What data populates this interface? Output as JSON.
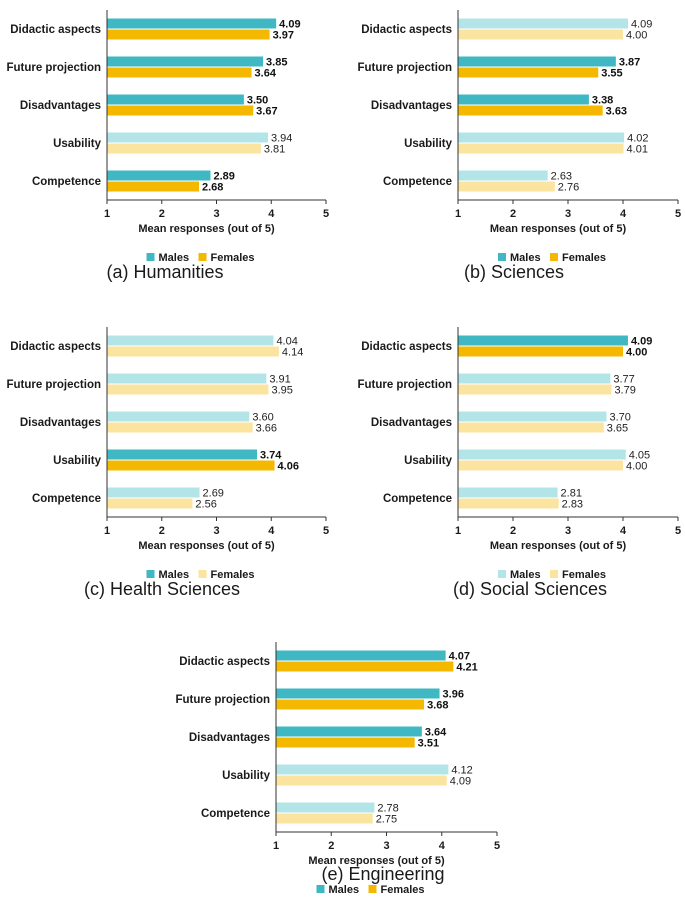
{
  "colors": {
    "males_strong": "#3fb8c4",
    "females_strong": "#f5b800",
    "males_light": "#b3e4e8",
    "females_light": "#fbe3a0",
    "axis": "#333333"
  },
  "chart_data": [
    {
      "type": "bar",
      "orientation": "horizontal",
      "caption": "(a) Humanities",
      "categories": [
        "Didactic aspects",
        "Future projection",
        "Disadvantages",
        "Usability",
        "Competence"
      ],
      "series": [
        {
          "name": "Males",
          "values": [
            4.09,
            3.85,
            3.5,
            3.94,
            2.89
          ],
          "labels": [
            "4.09",
            "3.85",
            "3.50",
            "3.94",
            "2.89"
          ]
        },
        {
          "name": "Females",
          "values": [
            3.97,
            3.64,
            3.67,
            3.81,
            2.68
          ],
          "labels": [
            "3.97",
            "3.64",
            "3.67",
            "3.81",
            "2.68"
          ]
        }
      ],
      "highlighted": [
        true,
        true,
        true,
        false,
        true
      ],
      "xlabel": "Mean responses (out of 5)",
      "xlim": [
        1,
        5
      ],
      "xticks": [
        "1",
        "2",
        "3",
        "4",
        "5"
      ],
      "legend": [
        "Males",
        "Females"
      ],
      "legend_style": "strong"
    },
    {
      "type": "bar",
      "orientation": "horizontal",
      "caption": "(b) Sciences",
      "categories": [
        "Didactic aspects",
        "Future projection",
        "Disadvantages",
        "Usability",
        "Competence"
      ],
      "series": [
        {
          "name": "Males",
          "values": [
            4.09,
            3.87,
            3.38,
            4.02,
            2.63
          ],
          "labels": [
            "4.09",
            "3.87",
            "3.38",
            "4.02",
            "2.63"
          ]
        },
        {
          "name": "Females",
          "values": [
            4.0,
            3.55,
            3.63,
            4.01,
            2.76
          ],
          "labels": [
            "4.00",
            "3.55",
            "3.63",
            "4.01",
            "2.76"
          ]
        }
      ],
      "highlighted": [
        false,
        true,
        true,
        false,
        false
      ],
      "xlabel": "Mean responses (out of 5)",
      "xlim": [
        1,
        5
      ],
      "xticks": [
        "1",
        "2",
        "3",
        "4",
        "5"
      ],
      "legend": [
        "Males",
        "Females"
      ],
      "legend_style": "strong"
    },
    {
      "type": "bar",
      "orientation": "horizontal",
      "caption": "(c) Health Sciences",
      "categories": [
        "Didactic aspects",
        "Future projection",
        "Disadvantages",
        "Usability",
        "Competence"
      ],
      "series": [
        {
          "name": "Males",
          "values": [
            4.04,
            3.91,
            3.6,
            3.74,
            2.69
          ],
          "labels": [
            "4.04",
            "3.91",
            "3.60",
            "3.74",
            "2.69"
          ]
        },
        {
          "name": "Females",
          "values": [
            4.14,
            3.95,
            3.66,
            4.06,
            2.56
          ],
          "labels": [
            "4.14",
            "3.95",
            "3.66",
            "4.06",
            "2.56"
          ]
        }
      ],
      "highlighted": [
        false,
        false,
        false,
        true,
        false
      ],
      "xlabel": "Mean responses (out of 5)",
      "xlim": [
        1,
        5
      ],
      "xticks": [
        "1",
        "2",
        "3",
        "4",
        "5"
      ],
      "legend": [
        "Males",
        "Females"
      ],
      "legend_style": "mixed"
    },
    {
      "type": "bar",
      "orientation": "horizontal",
      "caption": "(d) Social Sciences",
      "categories": [
        "Didactic aspects",
        "Future projection",
        "Disadvantages",
        "Usability",
        "Competence"
      ],
      "series": [
        {
          "name": "Males",
          "values": [
            4.09,
            3.77,
            3.7,
            4.05,
            2.81
          ],
          "labels": [
            "4.09",
            "3.77",
            "3.70",
            "4.05",
            "2.81"
          ]
        },
        {
          "name": "Females",
          "values": [
            4.0,
            3.79,
            3.65,
            4.0,
            2.83
          ],
          "labels": [
            "4.00",
            "3.79",
            "3.65",
            "4.00",
            "2.83"
          ]
        }
      ],
      "highlighted": [
        true,
        false,
        false,
        false,
        false
      ],
      "xlabel": "Mean responses (out of 5)",
      "xlim": [
        1,
        5
      ],
      "xticks": [
        "1",
        "2",
        "3",
        "4",
        "5"
      ],
      "legend": [
        "Males",
        "Females"
      ],
      "legend_style": "light"
    },
    {
      "type": "bar",
      "orientation": "horizontal",
      "caption": "(e) Engineering",
      "categories": [
        "Didactic aspects",
        "Future projection",
        "Disadvantages",
        "Usability",
        "Competence"
      ],
      "series": [
        {
          "name": "Males",
          "values": [
            4.07,
            3.96,
            3.64,
            4.12,
            2.78
          ],
          "labels": [
            "4.07",
            "3.96",
            "3.64",
            "4.12",
            "2.78"
          ]
        },
        {
          "name": "Females",
          "values": [
            4.21,
            3.68,
            3.51,
            4.09,
            2.75
          ],
          "labels": [
            "4.21",
            "3.68",
            "3.51",
            "4.09",
            "2.75"
          ]
        }
      ],
      "highlighted": [
        true,
        true,
        true,
        false,
        false
      ],
      "xlabel": "Mean responses (out of 5)",
      "xlim": [
        1,
        5
      ],
      "xticks": [
        "1",
        "2",
        "3",
        "4",
        "5"
      ],
      "legend": [
        "Males",
        "Females"
      ],
      "legend_style": "strong"
    }
  ]
}
